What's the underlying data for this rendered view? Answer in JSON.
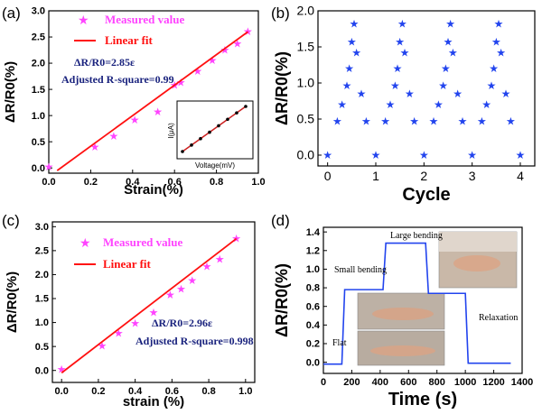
{
  "chart_data": [
    {
      "panel": "(a)",
      "type": "scatter",
      "xlabel": "Strain(%)",
      "ylabel": "ΔR/R0(%)",
      "xlim": [
        0.0,
        1.0
      ],
      "ylim": [
        -0.1,
        3.0
      ],
      "xticks": [
        "0.0",
        "0.2",
        "0.4",
        "0.6",
        "0.8",
        "1.0"
      ],
      "yticks": [
        "0.0",
        "0.5",
        "1.0",
        "1.5",
        "2.0",
        "2.5",
        "3.0"
      ],
      "series": [
        {
          "name": "Measured value",
          "color": "#ff44ff",
          "marker": "star",
          "x": [
            0.0,
            0.22,
            0.31,
            0.41,
            0.52,
            0.6,
            0.63,
            0.71,
            0.78,
            0.84,
            0.9,
            0.95
          ],
          "y": [
            0.02,
            0.4,
            0.61,
            0.92,
            1.07,
            1.58,
            1.63,
            1.85,
            2.05,
            2.25,
            2.37,
            2.6
          ]
        },
        {
          "name": "Linear fit",
          "color": "#ff1010",
          "line": true,
          "x": [
            0.04,
            0.95
          ],
          "y": [
            -0.05,
            2.6
          ]
        }
      ],
      "annotations": [
        "ΔR/R0=2.85ε",
        "Adjusted R-square=0.99"
      ],
      "inset": {
        "xlabel": "Voltage(mV)",
        "ylabel": "I(μA)"
      }
    },
    {
      "panel": "(b)",
      "type": "scatter",
      "xlabel": "Cycle",
      "ylabel": "ΔR/R0(%)",
      "xlim": [
        -0.2,
        4.3
      ],
      "ylim": [
        -0.15,
        2.0
      ],
      "xticks": [
        "0",
        "1",
        "2",
        "3",
        "4"
      ],
      "yticks": [
        "0.0",
        "0.5",
        "1.0",
        "1.5",
        "2.0"
      ],
      "series": [
        {
          "name": "",
          "color": "#2244ee",
          "marker": "star",
          "x": [
            0.0,
            0.2,
            0.3,
            0.4,
            0.45,
            0.5,
            0.55,
            0.6,
            0.7,
            0.8,
            1.0,
            1.2,
            1.3,
            1.4,
            1.45,
            1.5,
            1.55,
            1.6,
            1.7,
            1.8,
            2.0,
            2.2,
            2.3,
            2.4,
            2.45,
            2.5,
            2.55,
            2.6,
            2.7,
            2.8,
            3.0,
            3.2,
            3.3,
            3.4,
            3.45,
            3.5,
            3.55,
            3.6,
            3.7,
            3.8,
            4.0
          ],
          "y": [
            0.0,
            0.47,
            0.7,
            0.96,
            1.2,
            1.57,
            1.82,
            1.42,
            0.85,
            0.47,
            0.0,
            0.47,
            0.7,
            0.96,
            1.2,
            1.57,
            1.82,
            1.42,
            0.85,
            0.47,
            0.0,
            0.47,
            0.7,
            0.96,
            1.2,
            1.57,
            1.82,
            1.42,
            0.85,
            0.47,
            0.0,
            0.47,
            0.7,
            0.96,
            1.2,
            1.57,
            1.82,
            1.42,
            0.85,
            0.47,
            0.0
          ]
        }
      ]
    },
    {
      "panel": "(c)",
      "type": "scatter",
      "xlabel": "strain (%)",
      "ylabel": "ΔR/R0(%)",
      "xlim": [
        -0.05,
        1.05
      ],
      "ylim": [
        -0.25,
        3.1
      ],
      "xticks": [
        "0.0",
        "0.2",
        "0.4",
        "0.6",
        "0.8",
        "1.0"
      ],
      "yticks": [
        "0.0",
        "0.5",
        "1.0",
        "1.5",
        "2.0",
        "2.5",
        "3.0"
      ],
      "series": [
        {
          "name": "Measured value",
          "color": "#ff44ff",
          "marker": "star",
          "x": [
            0.0,
            0.22,
            0.31,
            0.4,
            0.5,
            0.59,
            0.65,
            0.71,
            0.79,
            0.86,
            0.95
          ],
          "y": [
            0.02,
            0.51,
            0.78,
            0.98,
            1.21,
            1.58,
            1.7,
            1.88,
            2.17,
            2.32,
            2.75
          ]
        },
        {
          "name": "Linear fit",
          "color": "#ff1010",
          "line": true,
          "x": [
            0.0,
            0.95
          ],
          "y": [
            -0.05,
            2.75
          ]
        }
      ],
      "annotations": [
        "ΔR/R0=2.96ε",
        "Adjusted R-square=0.998"
      ]
    },
    {
      "panel": "(d)",
      "type": "line",
      "xlabel": "Time (s)",
      "ylabel": "ΔR/R0(%)",
      "xlim": [
        0,
        1400
      ],
      "ylim": [
        -0.12,
        1.45
      ],
      "xticks": [
        "0",
        "200",
        "400",
        "600",
        "800",
        "1000",
        "1200",
        "1400"
      ],
      "yticks": [
        "0.0",
        "0.2",
        "0.4",
        "0.6",
        "0.8",
        "1.0",
        "1.2",
        "1.4"
      ],
      "series": [
        {
          "name": "",
          "color": "#2244ee",
          "x": [
            0,
            130,
            150,
            420,
            440,
            720,
            740,
            1000,
            1020,
            1320
          ],
          "y": [
            -0.02,
            -0.02,
            0.78,
            0.78,
            1.28,
            1.28,
            0.74,
            0.74,
            -0.01,
            -0.01
          ]
        }
      ],
      "annotations": [
        "Flat",
        "Small bending",
        "Large bending",
        "Relaxation"
      ]
    }
  ]
}
